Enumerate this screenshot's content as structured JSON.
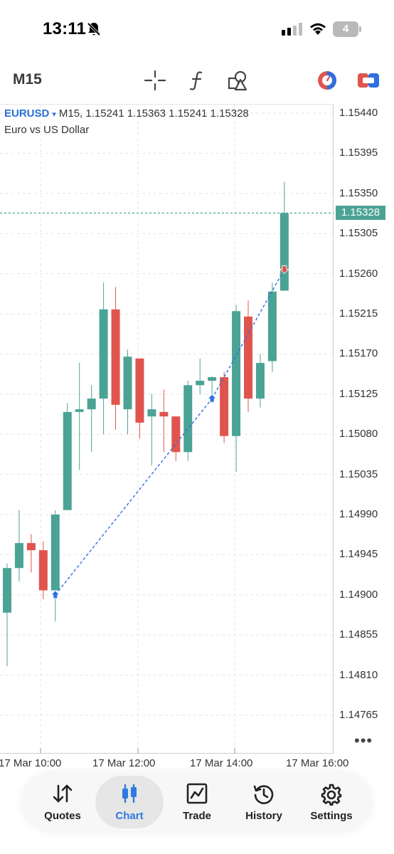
{
  "status_bar": {
    "time": "13:11",
    "battery": "4"
  },
  "toolbar": {
    "timeframe": "M15",
    "icons": [
      "crosshair-icon",
      "function-f-icon",
      "objects-shapes-icon",
      "one-click-trading-icon",
      "account-switch-icon"
    ]
  },
  "chart": {
    "symbol": "EURUSD",
    "caret": "▾",
    "ohlc_text": "M15, 1.15241 1.15363 1.15241 1.15328",
    "description": "Euro vs US Dollar",
    "current_price": "1.15328",
    "price_labels": [
      "1.15440",
      "1.15395",
      "1.15350",
      "1.15305",
      "1.15260",
      "1.15215",
      "1.15170",
      "1.15125",
      "1.15080",
      "1.15035",
      "1.14990",
      "1.14945",
      "1.14900",
      "1.14855",
      "1.14810",
      "1.14765"
    ],
    "time_labels": [
      "17 Mar 10:00",
      "17 Mar 12:00",
      "17 Mar 14:00",
      "17 Mar 16:00"
    ],
    "more": "•••",
    "bull_color": "#4ba395",
    "bear_color": "#e0544e",
    "trade_line_color": "#2f6fe0"
  },
  "chart_data": {
    "type": "candlestick",
    "title": "EURUSD",
    "timeframe": "M15",
    "ylim": [
      1.1473,
      1.15455
    ],
    "grid": true,
    "candles": [
      {
        "o": 1.1488,
        "h": 1.14935,
        "l": 1.1482,
        "c": 1.1493,
        "dir": "up"
      },
      {
        "o": 1.1493,
        "h": 1.14995,
        "l": 1.14915,
        "c": 1.14958,
        "dir": "up"
      },
      {
        "o": 1.14958,
        "h": 1.14968,
        "l": 1.14925,
        "c": 1.1495,
        "dir": "down"
      },
      {
        "o": 1.1495,
        "h": 1.1496,
        "l": 1.14895,
        "c": 1.14905,
        "dir": "down"
      },
      {
        "o": 1.14905,
        "h": 1.14995,
        "l": 1.1487,
        "c": 1.1499,
        "dir": "up"
      },
      {
        "o": 1.14995,
        "h": 1.15115,
        "l": 1.14995,
        "c": 1.15105,
        "dir": "up"
      },
      {
        "o": 1.15105,
        "h": 1.1516,
        "l": 1.1504,
        "c": 1.15108,
        "dir": "up"
      },
      {
        "o": 1.15108,
        "h": 1.15135,
        "l": 1.1506,
        "c": 1.1512,
        "dir": "up"
      },
      {
        "o": 1.1512,
        "h": 1.1525,
        "l": 1.1508,
        "c": 1.1522,
        "dir": "up"
      },
      {
        "o": 1.1522,
        "h": 1.15245,
        "l": 1.15085,
        "c": 1.15113,
        "dir": "down"
      },
      {
        "o": 1.15108,
        "h": 1.15175,
        "l": 1.1508,
        "c": 1.15167,
        "dir": "up"
      },
      {
        "o": 1.15165,
        "h": 1.15165,
        "l": 1.15075,
        "c": 1.15093,
        "dir": "down"
      },
      {
        "o": 1.151,
        "h": 1.15125,
        "l": 1.15045,
        "c": 1.15108,
        "dir": "up"
      },
      {
        "o": 1.15105,
        "h": 1.1513,
        "l": 1.1506,
        "c": 1.151,
        "dir": "down"
      },
      {
        "o": 1.151,
        "h": 1.151,
        "l": 1.1505,
        "c": 1.1506,
        "dir": "down"
      },
      {
        "o": 1.1506,
        "h": 1.1514,
        "l": 1.1505,
        "c": 1.15135,
        "dir": "up"
      },
      {
        "o": 1.15135,
        "h": 1.15165,
        "l": 1.15125,
        "c": 1.1514,
        "dir": "up"
      },
      {
        "o": 1.1514,
        "h": 1.15145,
        "l": 1.15115,
        "c": 1.15144,
        "dir": "up"
      },
      {
        "o": 1.15144,
        "h": 1.1515,
        "l": 1.1507,
        "c": 1.15078,
        "dir": "down"
      },
      {
        "o": 1.15078,
        "h": 1.15225,
        "l": 1.15038,
        "c": 1.15218,
        "dir": "up"
      },
      {
        "o": 1.15212,
        "h": 1.1523,
        "l": 1.15105,
        "c": 1.1512,
        "dir": "down"
      },
      {
        "o": 1.1512,
        "h": 1.1517,
        "l": 1.1511,
        "c": 1.1516,
        "dir": "up"
      },
      {
        "o": 1.15162,
        "h": 1.1525,
        "l": 1.1515,
        "c": 1.1524,
        "dir": "up"
      },
      {
        "o": 1.15241,
        "h": 1.15363,
        "l": 1.15241,
        "c": 1.15328,
        "dir": "up"
      }
    ],
    "trades": [
      {
        "side": "buy",
        "price": 1.149
      },
      {
        "side": "buy",
        "price": 1.1512
      },
      {
        "side": "sell",
        "price": 1.15265
      }
    ]
  },
  "nav": {
    "items": [
      {
        "label": "Quotes",
        "icon": "quotes-arrows-icon",
        "active": false
      },
      {
        "label": "Chart",
        "icon": "candlestick-chart-icon",
        "active": true
      },
      {
        "label": "Trade",
        "icon": "trade-trend-icon",
        "active": false
      },
      {
        "label": "History",
        "icon": "history-clock-icon",
        "active": false
      },
      {
        "label": "Settings",
        "icon": "settings-gear-icon",
        "active": false
      }
    ]
  }
}
